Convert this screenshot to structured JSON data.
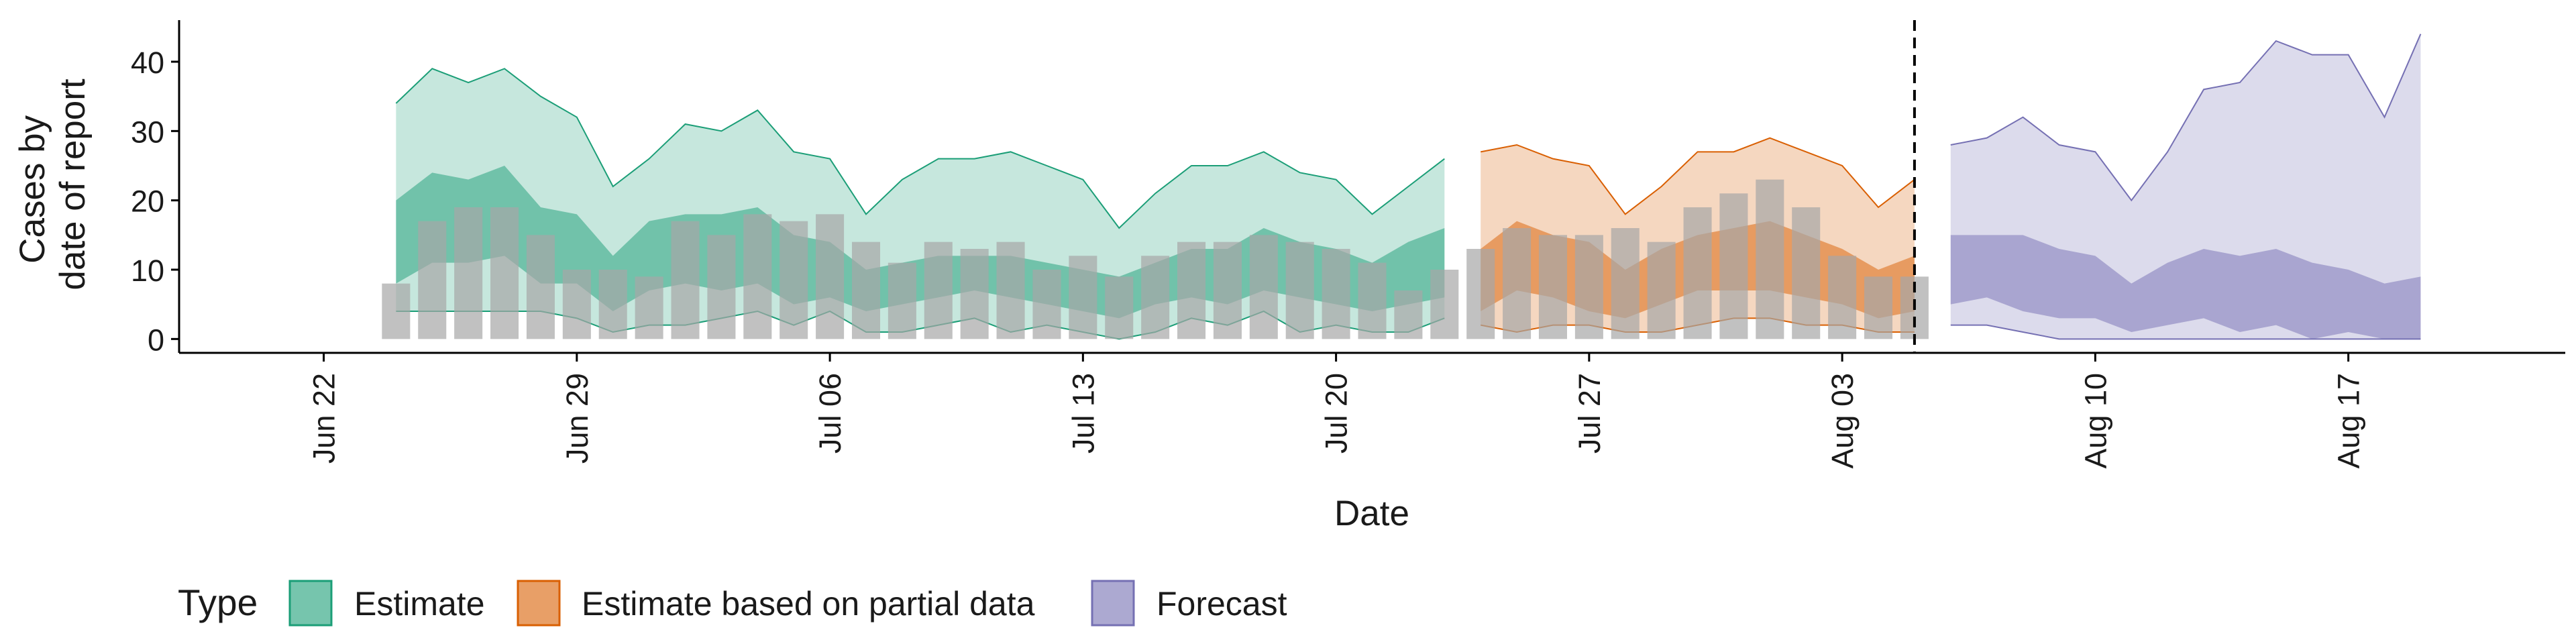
{
  "chart_data": {
    "type": "area",
    "title": "",
    "xlabel": "Date",
    "ylabel_lines": [
      "Cases by",
      "date of report"
    ],
    "x_ticks": [
      "Jun 22",
      "Jun 29",
      "Jul 06",
      "Jul 13",
      "Jul 20",
      "Jul 27",
      "Aug 03",
      "Aug 10",
      "Aug 17"
    ],
    "x_tick_dates": [
      "2020-06-22",
      "2020-06-29",
      "2020-07-06",
      "2020-07-13",
      "2020-07-20",
      "2020-07-27",
      "2020-08-03",
      "2020-08-10",
      "2020-08-17"
    ],
    "xlim": [
      "2020-06-18",
      "2020-08-23"
    ],
    "y_ticks": [
      0,
      10,
      20,
      30,
      40
    ],
    "ylim": [
      -2,
      46
    ],
    "forecast_start_line": "2020-08-05",
    "grid": false,
    "legend": {
      "title": "Type",
      "position": "bottom",
      "entries": [
        "Estimate",
        "Estimate based on partial data",
        "Forecast"
      ]
    },
    "colors": {
      "Estimate": "#1b9e77",
      "Estimate based on partial data": "#d95f02",
      "Forecast": "#7570b3",
      "observed_bars": "#a6a6a6"
    },
    "observed": {
      "dates": [
        "2020-06-24",
        "2020-06-25",
        "2020-06-26",
        "2020-06-27",
        "2020-06-28",
        "2020-06-29",
        "2020-06-30",
        "2020-07-01",
        "2020-07-02",
        "2020-07-03",
        "2020-07-04",
        "2020-07-05",
        "2020-07-06",
        "2020-07-07",
        "2020-07-08",
        "2020-07-09",
        "2020-07-10",
        "2020-07-11",
        "2020-07-12",
        "2020-07-13",
        "2020-07-14",
        "2020-07-15",
        "2020-07-16",
        "2020-07-17",
        "2020-07-18",
        "2020-07-19",
        "2020-07-20",
        "2020-07-21",
        "2020-07-22",
        "2020-07-23",
        "2020-07-24",
        "2020-07-25",
        "2020-07-26",
        "2020-07-27",
        "2020-07-28",
        "2020-07-29",
        "2020-07-30",
        "2020-07-31",
        "2020-08-01",
        "2020-08-02",
        "2020-08-03",
        "2020-08-04",
        "2020-08-05"
      ],
      "values": [
        8,
        17,
        19,
        19,
        15,
        10,
        10,
        9,
        17,
        15,
        18,
        17,
        18,
        14,
        11,
        14,
        13,
        14,
        10,
        12,
        9,
        12,
        14,
        14,
        15,
        14,
        13,
        11,
        7,
        10,
        13,
        16,
        15,
        15,
        16,
        14,
        19,
        21,
        23,
        19,
        12,
        9,
        9
      ]
    },
    "series": [
      {
        "name": "Estimate",
        "dates": [
          "2020-06-24",
          "2020-06-25",
          "2020-06-26",
          "2020-06-27",
          "2020-06-28",
          "2020-06-29",
          "2020-06-30",
          "2020-07-01",
          "2020-07-02",
          "2020-07-03",
          "2020-07-04",
          "2020-07-05",
          "2020-07-06",
          "2020-07-07",
          "2020-07-08",
          "2020-07-09",
          "2020-07-10",
          "2020-07-11",
          "2020-07-12",
          "2020-07-13",
          "2020-07-14",
          "2020-07-15",
          "2020-07-16",
          "2020-07-17",
          "2020-07-18",
          "2020-07-19",
          "2020-07-20",
          "2020-07-21",
          "2020-07-22",
          "2020-07-23"
        ],
        "upper_90": [
          34,
          39,
          37,
          39,
          35,
          32,
          22,
          26,
          31,
          30,
          33,
          27,
          26,
          18,
          23,
          26,
          26,
          27,
          25,
          23,
          16,
          21,
          25,
          25,
          27,
          24,
          23,
          18,
          22,
          26
        ],
        "upper_50": [
          20,
          24,
          23,
          25,
          19,
          18,
          12,
          17,
          18,
          18,
          19,
          15,
          14,
          10,
          11,
          12,
          12,
          12,
          11,
          10,
          9,
          11,
          13,
          13,
          16,
          14,
          13,
          11,
          14,
          16
        ],
        "lower_50": [
          8,
          11,
          11,
          12,
          8,
          8,
          4,
          7,
          8,
          7,
          8,
          5,
          6,
          4,
          5,
          6,
          7,
          6,
          5,
          4,
          3,
          5,
          6,
          5,
          7,
          6,
          5,
          4,
          5,
          6
        ],
        "lower_90": [
          4,
          4,
          4,
          4,
          4,
          3,
          1,
          2,
          2,
          3,
          4,
          2,
          4,
          1,
          1,
          2,
          3,
          1,
          2,
          1,
          0,
          1,
          3,
          2,
          4,
          1,
          2,
          1,
          1,
          3
        ]
      },
      {
        "name": "Estimate based on partial data",
        "dates": [
          "2020-07-24",
          "2020-07-25",
          "2020-07-26",
          "2020-07-27",
          "2020-07-28",
          "2020-07-29",
          "2020-07-30",
          "2020-07-31",
          "2020-08-01",
          "2020-08-02",
          "2020-08-03",
          "2020-08-04",
          "2020-08-05"
        ],
        "upper_90": [
          27,
          28,
          26,
          25,
          18,
          22,
          27,
          27,
          29,
          27,
          25,
          19,
          23
        ],
        "upper_50": [
          13,
          17,
          15,
          14,
          10,
          13,
          15,
          16,
          17,
          15,
          13,
          10,
          12
        ],
        "lower_50": [
          4,
          7,
          6,
          4,
          3,
          5,
          7,
          7,
          7,
          6,
          5,
          3,
          4
        ],
        "lower_90": [
          2,
          1,
          2,
          2,
          1,
          1,
          2,
          3,
          3,
          2,
          2,
          1,
          1
        ]
      },
      {
        "name": "Forecast",
        "dates": [
          "2020-08-06",
          "2020-08-07",
          "2020-08-08",
          "2020-08-09",
          "2020-08-10",
          "2020-08-11",
          "2020-08-12",
          "2020-08-13",
          "2020-08-14",
          "2020-08-15",
          "2020-08-16",
          "2020-08-17",
          "2020-08-18",
          "2020-08-19"
        ],
        "upper_90": [
          28,
          29,
          32,
          28,
          27,
          20,
          27,
          36,
          37,
          43,
          41,
          41,
          32,
          44
        ],
        "upper_50": [
          15,
          15,
          15,
          13,
          12,
          8,
          11,
          13,
          12,
          13,
          11,
          10,
          8,
          9
        ],
        "lower_50": [
          5,
          6,
          4,
          3,
          3,
          1,
          2,
          3,
          1,
          2,
          0,
          1,
          0,
          0
        ],
        "lower_90": [
          2,
          2,
          1,
          0,
          0,
          0,
          0,
          0,
          0,
          0,
          0,
          0,
          0,
          0
        ]
      }
    ]
  }
}
